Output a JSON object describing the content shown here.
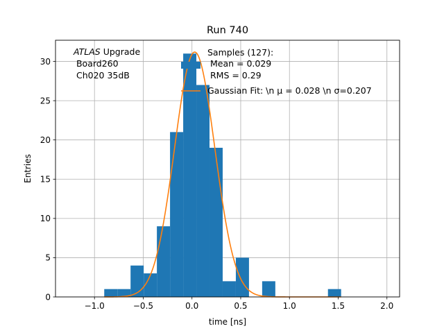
{
  "chart_data": {
    "type": "bar",
    "title": "Run 740",
    "xlabel": "time [ns]",
    "ylabel": "Entries",
    "xlim": [
      -1.4,
      2.13
    ],
    "ylim": [
      0,
      32.7
    ],
    "grid": true,
    "x_ticks": [
      -1.0,
      -0.5,
      0.0,
      0.5,
      1.0,
      1.5,
      2.0
    ],
    "x_tick_labels": [
      "−1.0",
      "−0.5",
      "0.0",
      "0.5",
      "1.0",
      "1.5",
      "2.0"
    ],
    "y_ticks": [
      0,
      5,
      10,
      15,
      20,
      25,
      30
    ],
    "y_tick_labels": [
      "0",
      "5",
      "10",
      "15",
      "20",
      "25",
      "30"
    ],
    "bins": [
      {
        "left": -0.9,
        "right": -0.765,
        "count": 1
      },
      {
        "left": -0.765,
        "right": -0.63,
        "count": 1
      },
      {
        "left": -0.63,
        "right": -0.495,
        "count": 4
      },
      {
        "left": -0.495,
        "right": -0.36,
        "count": 3
      },
      {
        "left": -0.36,
        "right": -0.225,
        "count": 9
      },
      {
        "left": -0.225,
        "right": -0.09,
        "count": 21
      },
      {
        "left": -0.09,
        "right": 0.045,
        "count": 31
      },
      {
        "left": 0.045,
        "right": 0.18,
        "count": 27
      },
      {
        "left": 0.18,
        "right": 0.315,
        "count": 19
      },
      {
        "left": 0.315,
        "right": 0.45,
        "count": 2
      },
      {
        "left": 0.45,
        "right": 0.585,
        "count": 5
      },
      {
        "left": 0.72,
        "right": 0.855,
        "count": 2
      },
      {
        "left": 1.395,
        "right": 1.53,
        "count": 1
      }
    ],
    "fit": {
      "mu": 0.028,
      "sigma": 0.207,
      "amplitude": 31.2,
      "x_range": [
        -0.9,
        1.53
      ]
    },
    "series": [
      {
        "name": "Samples (127):",
        "type": "histogram",
        "color": "#1f77b4"
      },
      {
        "name": "Gaussian Fit: \\n $\\mu$ = 0.028 \\n $\\sigma$=0.207",
        "type": "line",
        "color": "#ff7f0e"
      }
    ],
    "legend": {
      "placement": "top-right",
      "samples_lines": [
        "Samples (127):",
        " Mean = 0.029",
        " RMS = 0.29"
      ],
      "fit_label": "Gaussian Fit: \\n μ = 0.028 \\n σ=0.207"
    },
    "annotation": {
      "atlas": "ATLAS",
      "upgrade": " Upgrade",
      "line2": " Board260",
      "line3": " Ch020 35dB"
    }
  }
}
